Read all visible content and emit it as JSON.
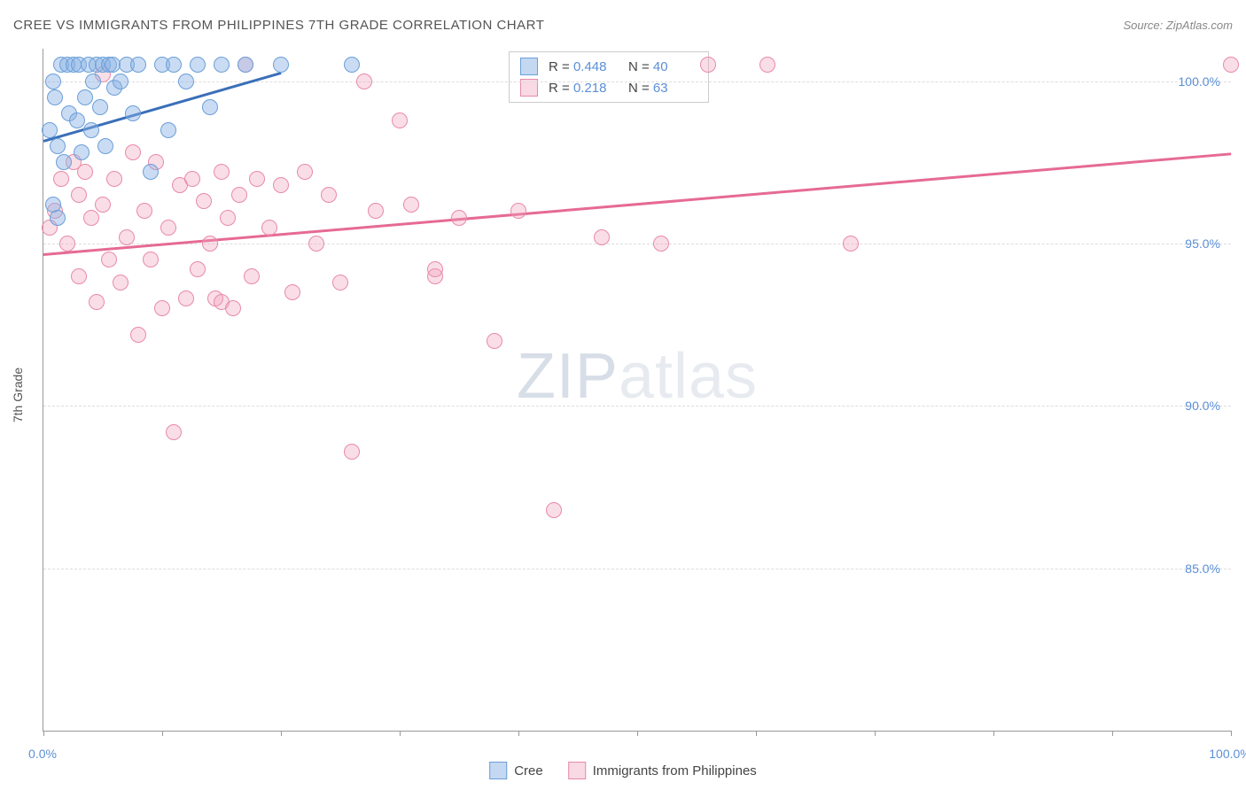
{
  "header": {
    "title": "CREE VS IMMIGRANTS FROM PHILIPPINES 7TH GRADE CORRELATION CHART",
    "source_prefix": "Source: ",
    "source": "ZipAtlas.com"
  },
  "chart": {
    "type": "scatter",
    "y_axis_label": "7th Grade",
    "background_color": "#ffffff",
    "grid_color": "#dddddd",
    "axis_color": "#999999",
    "xlim": [
      0,
      100
    ],
    "ylim": [
      80,
      101
    ],
    "x_ticks": [
      0,
      10,
      20,
      30,
      40,
      50,
      60,
      70,
      80,
      90,
      100
    ],
    "x_tick_labels": {
      "0": "0.0%",
      "100": "100.0%"
    },
    "y_ticks": [
      85,
      90,
      95,
      100
    ],
    "y_tick_labels": {
      "85": "85.0%",
      "90": "90.0%",
      "95": "95.0%",
      "100": "100.0%"
    },
    "watermark": {
      "bold": "ZIP",
      "light": "atlas"
    },
    "series": {
      "blue": {
        "label": "Cree",
        "color_fill": "#89b2e4",
        "color_stroke": "#6a9fd8",
        "r_value": "0.448",
        "n_value": "40",
        "trend": {
          "x1": 0,
          "y1": 98.2,
          "x2": 20,
          "y2": 100.3,
          "color": "#3a6fb8"
        },
        "points": [
          [
            0.5,
            98.5
          ],
          [
            0.8,
            100.0
          ],
          [
            1.0,
            99.5
          ],
          [
            1.2,
            98.0
          ],
          [
            1.5,
            100.5
          ],
          [
            1.7,
            97.5
          ],
          [
            2.0,
            100.5
          ],
          [
            2.2,
            99.0
          ],
          [
            2.5,
            100.5
          ],
          [
            2.8,
            98.8
          ],
          [
            3.0,
            100.5
          ],
          [
            3.2,
            97.8
          ],
          [
            3.5,
            99.5
          ],
          [
            3.8,
            100.5
          ],
          [
            4.0,
            98.5
          ],
          [
            4.2,
            100.0
          ],
          [
            4.5,
            100.5
          ],
          [
            4.8,
            99.2
          ],
          [
            5.0,
            100.5
          ],
          [
            5.2,
            98.0
          ],
          [
            5.5,
            100.5
          ],
          [
            5.8,
            100.5
          ],
          [
            6.0,
            99.8
          ],
          [
            6.5,
            100.0
          ],
          [
            7.0,
            100.5
          ],
          [
            7.5,
            99.0
          ],
          [
            8.0,
            100.5
          ],
          [
            9.0,
            97.2
          ],
          [
            10.0,
            100.5
          ],
          [
            10.5,
            98.5
          ],
          [
            11.0,
            100.5
          ],
          [
            12.0,
            100.0
          ],
          [
            13.0,
            100.5
          ],
          [
            14.0,
            99.2
          ],
          [
            15.0,
            100.5
          ],
          [
            17.0,
            100.5
          ],
          [
            20.0,
            100.5
          ],
          [
            26.0,
            100.5
          ],
          [
            0.8,
            96.2
          ],
          [
            1.2,
            95.8
          ]
        ]
      },
      "pink": {
        "label": "Immigrants from Philippines",
        "color_fill": "#f0a0b9",
        "color_stroke": "#e88aa8",
        "r_value": "0.218",
        "n_value": "63",
        "trend": {
          "x1": 0,
          "y1": 94.7,
          "x2": 100,
          "y2": 97.8,
          "color": "#e66a94"
        },
        "points": [
          [
            0.5,
            95.5
          ],
          [
            1.0,
            96.0
          ],
          [
            1.5,
            97.0
          ],
          [
            2.0,
            95.0
          ],
          [
            2.5,
            97.5
          ],
          [
            3.0,
            96.5
          ],
          [
            3.0,
            94.0
          ],
          [
            3.5,
            97.2
          ],
          [
            4.0,
            95.8
          ],
          [
            4.5,
            93.2
          ],
          [
            5.0,
            96.2
          ],
          [
            5.0,
            100.2
          ],
          [
            5.5,
            94.5
          ],
          [
            6.0,
            97.0
          ],
          [
            6.5,
            93.8
          ],
          [
            7.0,
            95.2
          ],
          [
            7.5,
            97.8
          ],
          [
            8.0,
            92.2
          ],
          [
            8.5,
            96.0
          ],
          [
            9.0,
            94.5
          ],
          [
            9.5,
            97.5
          ],
          [
            10.0,
            93.0
          ],
          [
            10.5,
            95.5
          ],
          [
            11.0,
            89.2
          ],
          [
            11.5,
            96.8
          ],
          [
            12.0,
            93.3
          ],
          [
            12.5,
            97.0
          ],
          [
            13.0,
            94.2
          ],
          [
            13.5,
            96.3
          ],
          [
            14.0,
            95.0
          ],
          [
            14.5,
            93.3
          ],
          [
            15.0,
            97.2
          ],
          [
            15.0,
            93.2
          ],
          [
            15.5,
            95.8
          ],
          [
            16.0,
            93.0
          ],
          [
            16.5,
            96.5
          ],
          [
            17.0,
            100.5
          ],
          [
            17.5,
            94.0
          ],
          [
            18.0,
            97.0
          ],
          [
            19.0,
            95.5
          ],
          [
            20.0,
            96.8
          ],
          [
            21.0,
            93.5
          ],
          [
            22.0,
            97.2
          ],
          [
            23.0,
            95.0
          ],
          [
            24.0,
            96.5
          ],
          [
            25.0,
            93.8
          ],
          [
            26.0,
            88.6
          ],
          [
            27.0,
            100.0
          ],
          [
            28.0,
            96.0
          ],
          [
            30.0,
            98.8
          ],
          [
            31.0,
            96.2
          ],
          [
            33.0,
            94.0
          ],
          [
            33.0,
            94.2
          ],
          [
            35.0,
            95.8
          ],
          [
            38.0,
            92.0
          ],
          [
            40.0,
            96.0
          ],
          [
            43.0,
            86.8
          ],
          [
            47.0,
            95.2
          ],
          [
            52.0,
            95.0
          ],
          [
            56.0,
            100.5
          ],
          [
            61.0,
            100.5
          ],
          [
            68.0,
            95.0
          ],
          [
            100.0,
            100.5
          ]
        ]
      }
    },
    "stats_box": {
      "r_label": "R =",
      "n_label": "N ="
    }
  }
}
